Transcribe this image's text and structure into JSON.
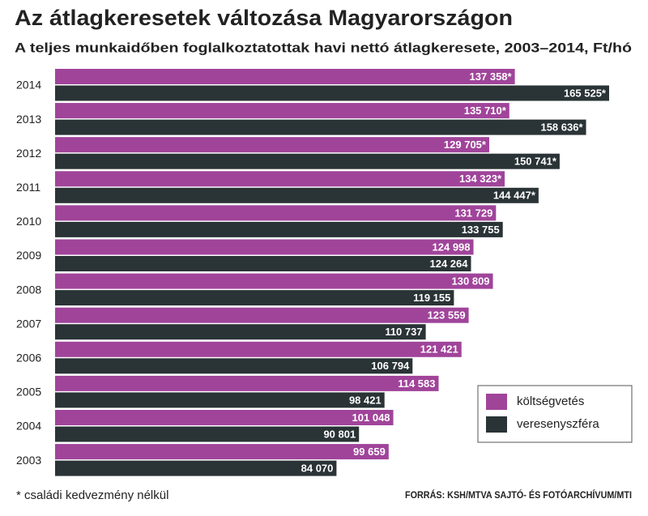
{
  "chart_data": {
    "type": "bar",
    "orientation": "horizontal",
    "title": "Az átlagkeresetek változása Magyarországon",
    "subtitle": "A teljes munkaidőben foglalkoztatottak havi nettó átlagkeresete, 2003–2014, Ft/hó",
    "categories": [
      "2014",
      "2013",
      "2012",
      "2011",
      "2010",
      "2009",
      "2008",
      "2007",
      "2006",
      "2005",
      "2004",
      "2003"
    ],
    "series": [
      {
        "name": "költségvetés",
        "color": "#a0449a",
        "values": [
          137358,
          135710,
          129705,
          134323,
          131729,
          124998,
          130809,
          123559,
          121421,
          114583,
          101048,
          99659
        ],
        "value_labels": [
          "137 358*",
          "135 710*",
          "129 705*",
          "134 323*",
          "131 729",
          "124 998",
          "130 809",
          "123 559",
          "121 421",
          "114 583",
          "101 048",
          "99 659"
        ]
      },
      {
        "name": "veresenyszféra",
        "color": "#2a3336",
        "values": [
          165525,
          158636,
          150741,
          144447,
          133755,
          124264,
          119155,
          110737,
          106794,
          98421,
          90801,
          84070
        ],
        "value_labels": [
          "165 525*",
          "158 636*",
          "150 741*",
          "144 447*",
          "133 755",
          "124 264",
          "119 155",
          "110 737",
          "106 794",
          "98 421",
          "90 801",
          "84 070"
        ]
      }
    ],
    "legend": "lower right",
    "note": "* családi kedvezmény nélkül",
    "source": "FORRÁS: KSH/MTVA SAJTÓ- ÉS FOTÓARCHÍVUM/MTI"
  }
}
